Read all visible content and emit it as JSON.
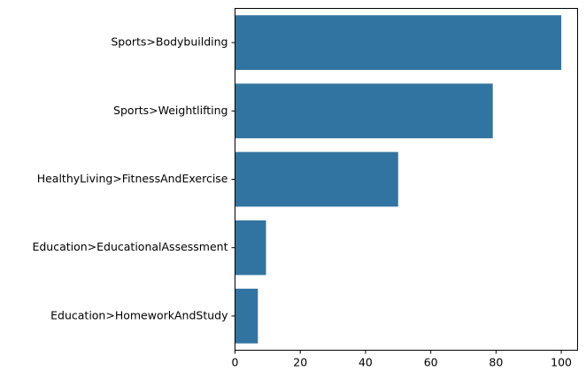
{
  "chart_data": {
    "type": "bar",
    "orientation": "horizontal",
    "categories": [
      "Sports>Bodybuilding",
      "Sports>Weightlifting",
      "HealthyLiving>FitnessAndExercise",
      "Education>EducationalAssessment",
      "Education>HomeworkAndStudy"
    ],
    "values": [
      100,
      79,
      50,
      9.5,
      7
    ],
    "xlim": [
      0,
      105
    ],
    "xticks": [
      0,
      20,
      40,
      60,
      80,
      100
    ],
    "title": "",
    "xlabel": "",
    "ylabel": "",
    "grid": false,
    "bar_color": "#3274a1"
  }
}
